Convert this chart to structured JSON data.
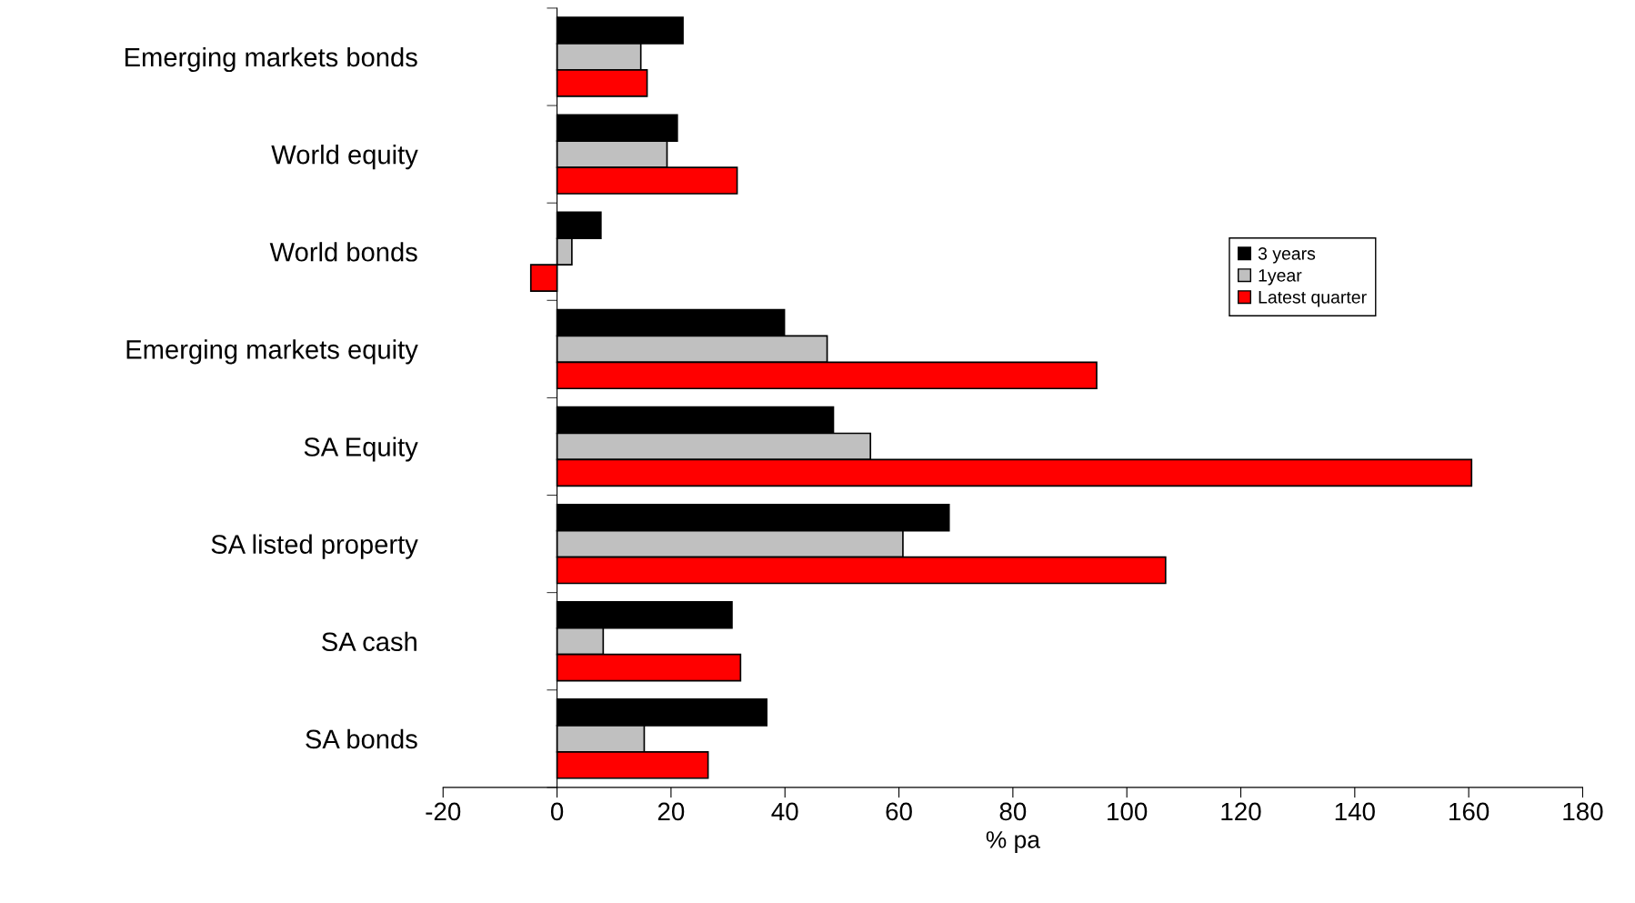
{
  "chart_data": {
    "type": "bar",
    "orientation": "horizontal",
    "xlabel": "% pa",
    "categories": [
      "Emerging markets bonds",
      "World equity",
      "World bonds",
      "Emerging markets equity",
      "SA Equity",
      "SA listed property",
      "SA cash",
      "SA bonds"
    ],
    "series": [
      {
        "name": "3 years",
        "color": "#000000",
        "values": [
          22.1,
          21.1,
          7.7,
          39.9,
          48.5,
          68.8,
          30.7,
          36.8
        ]
      },
      {
        "name": "1year",
        "color": "#c0c0c0",
        "values": [
          14.7,
          19.3,
          2.6,
          47.4,
          55.0,
          60.7,
          8.1,
          15.3
        ]
      },
      {
        "name": "Latest quarter",
        "color": "#ff0000",
        "values": [
          15.8,
          31.6,
          -4.6,
          94.7,
          160.5,
          106.8,
          32.2,
          26.5
        ]
      }
    ],
    "xlim": [
      -20,
      180
    ],
    "xticks": [
      -20,
      0,
      20,
      40,
      60,
      80,
      100,
      120,
      140,
      160,
      180
    ],
    "legend": "right"
  }
}
